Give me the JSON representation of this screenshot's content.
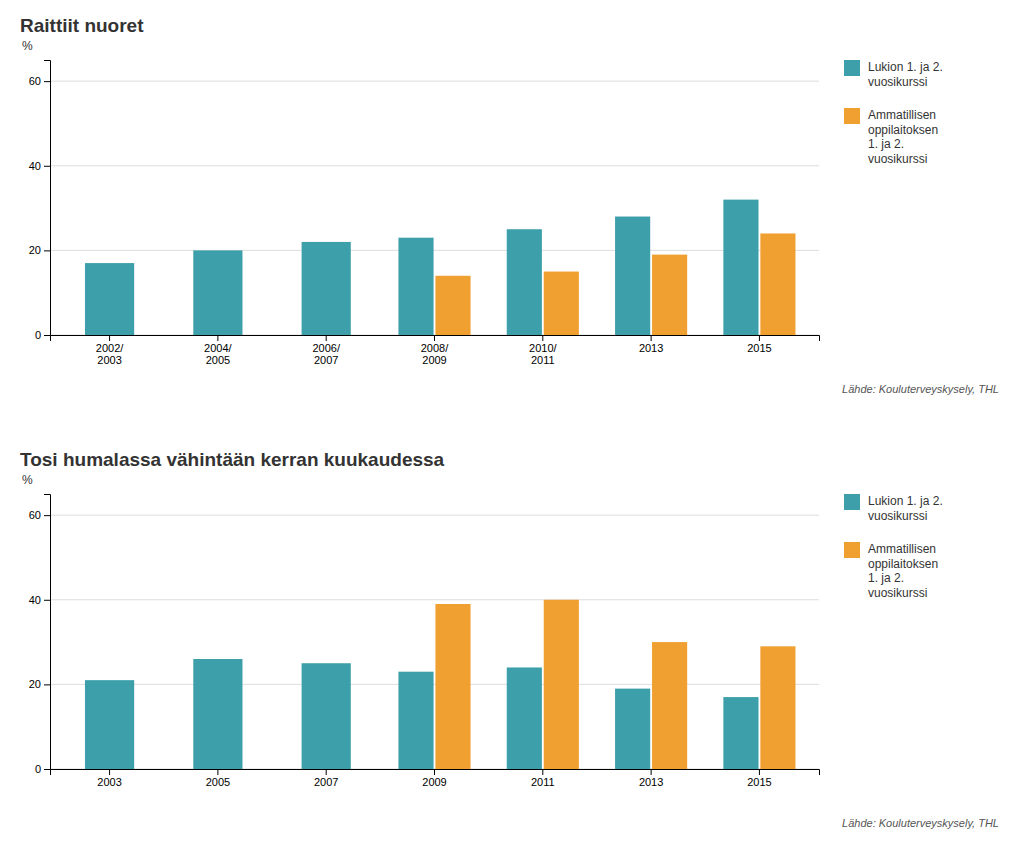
{
  "chart_data": [
    {
      "type": "bar",
      "title": "Raittiit nuoret",
      "categories": [
        "2002/\n2003",
        "2004/\n2005",
        "2006/\n2007",
        "2008/\n2009",
        "2010/\n2011",
        "2013",
        "2015"
      ],
      "series": [
        {
          "name": "Lukion 1. ja 2.\nvuosikurssi",
          "color": "#3d9faa",
          "values": [
            17,
            20,
            22,
            23,
            25,
            28,
            32
          ]
        },
        {
          "name": "Ammatillisen\noppilaitoksen\n1. ja 2.\nvuosikurssi",
          "color": "#f0a030",
          "values": [
            null,
            null,
            null,
            14,
            15,
            19,
            24
          ]
        }
      ],
      "ylabel": "%",
      "ylim": [
        0,
        65
      ],
      "yticks": [
        0,
        20,
        40,
        60
      ],
      "grid": true,
      "legend": "right",
      "annotations": [
        "Lähde: Kouluterveyskysely, THL"
      ]
    },
    {
      "type": "bar",
      "title": "Tosi humalassa vähintään kerran kuukaudessa",
      "categories": [
        "2003",
        "2005",
        "2007",
        "2009",
        "2011",
        "2013",
        "2015"
      ],
      "series": [
        {
          "name": "Lukion 1. ja 2.\nvuosikurssi",
          "color": "#3d9faa",
          "values": [
            21,
            26,
            25,
            23,
            24,
            19,
            17
          ]
        },
        {
          "name": "Ammatillisen\noppilaitoksen\n1. ja 2.\nvuosikurssi",
          "color": "#f0a030",
          "values": [
            null,
            null,
            null,
            39,
            40,
            30,
            29
          ]
        }
      ],
      "ylabel": "%",
      "ylim": [
        0,
        65
      ],
      "yticks": [
        0,
        20,
        40,
        60
      ],
      "grid": true,
      "legend": "right",
      "annotations": [
        "Lähde: Kouluterveyskysely, THL"
      ]
    }
  ]
}
